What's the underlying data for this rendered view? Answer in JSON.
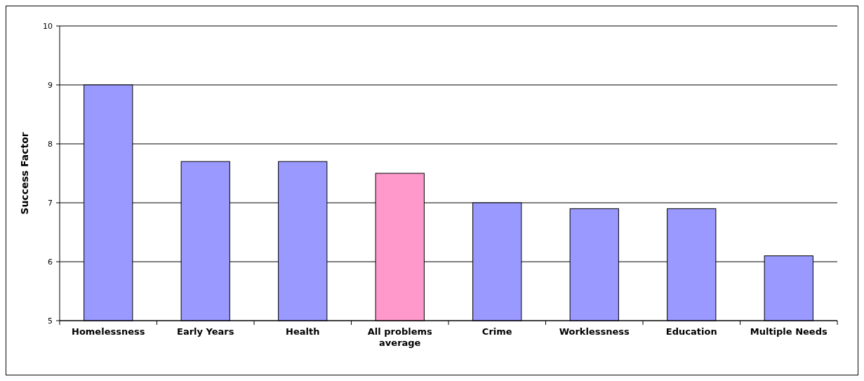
{
  "chart_data": {
    "type": "bar",
    "ylabel": "Success Factor",
    "categories": [
      "Homelessness",
      "Early Years",
      "Health",
      "All problems average",
      "Crime",
      "Worklessness",
      "Education",
      "Multiple Needs"
    ],
    "values": [
      9.0,
      7.7,
      7.7,
      7.5,
      7.0,
      6.9,
      6.9,
      6.1
    ],
    "colors": [
      "#9999ff",
      "#9999ff",
      "#9999ff",
      "#ff99cc",
      "#9999ff",
      "#9999ff",
      "#9999ff",
      "#9999ff"
    ],
    "ylim": [
      5,
      10
    ],
    "yticks": [
      5,
      6,
      7,
      8,
      9,
      10
    ],
    "grid": "y"
  }
}
